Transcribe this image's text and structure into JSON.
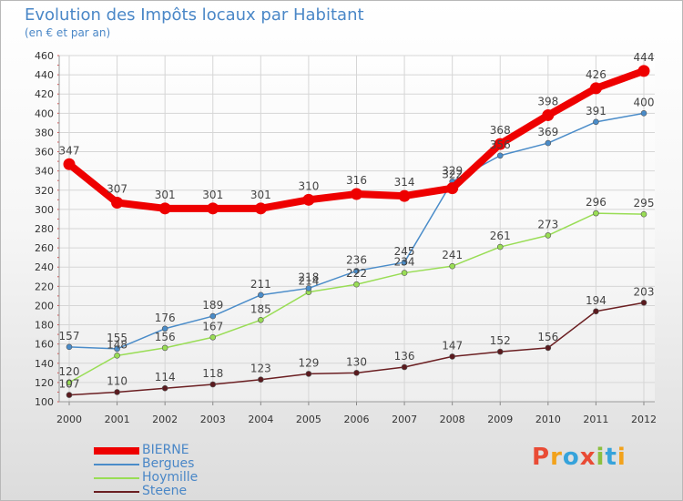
{
  "header": {
    "title": "Evolution des Impôts locaux par Habitant",
    "subtitle": "(en € et par an)"
  },
  "logo": {
    "text": "Proxiti",
    "letters": [
      "P",
      "r",
      "o",
      "x",
      "i",
      "t",
      "i"
    ],
    "colors": [
      "#e94b35",
      "#f2a21b",
      "#36a3db",
      "#e94b35",
      "#8cbf3f",
      "#36a3db",
      "#f2a21b"
    ]
  },
  "chart_data": {
    "type": "line",
    "title": "Evolution des Impôts locaux par Habitant",
    "subtitle": "(en € et par an)",
    "x": [
      "2000",
      "2001",
      "2002",
      "2003",
      "2004",
      "2005",
      "2006",
      "2007",
      "2008",
      "2009",
      "2010",
      "2011",
      "2012"
    ],
    "ylim": [
      100,
      460
    ],
    "yticks": [
      100,
      120,
      140,
      160,
      180,
      200,
      220,
      240,
      260,
      280,
      300,
      320,
      340,
      360,
      380,
      400,
      420,
      440,
      460
    ],
    "grid": true,
    "legend_position": "bottom-left",
    "series": [
      {
        "name": "BIERNE",
        "color": "#ee0000",
        "values": [
          347,
          307,
          301,
          301,
          301,
          310,
          316,
          314,
          322,
          368,
          398,
          426,
          444
        ]
      },
      {
        "name": "Bergues",
        "color": "#4a8cc9",
        "values": [
          157,
          155,
          176,
          189,
          211,
          218,
          236,
          245,
          329,
          356,
          369,
          391,
          400
        ]
      },
      {
        "name": "Hoymille",
        "color": "#99dd55",
        "values": [
          120,
          148,
          156,
          167,
          185,
          214,
          222,
          234,
          241,
          261,
          273,
          296,
          295
        ]
      },
      {
        "name": "Steene",
        "color": "#6b1f22",
        "values": [
          107,
          110,
          114,
          118,
          123,
          129,
          130,
          136,
          147,
          152,
          156,
          194,
          203
        ]
      }
    ]
  }
}
